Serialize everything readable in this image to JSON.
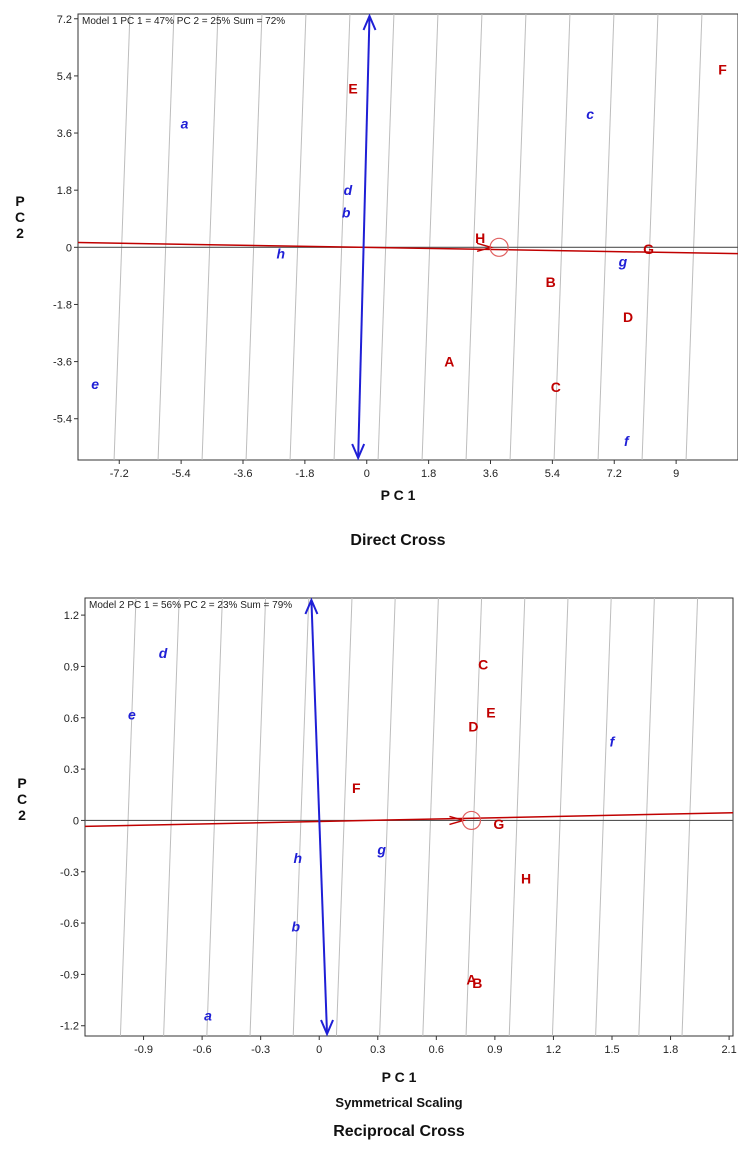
{
  "colors": {
    "entry": "#c00000",
    "tester": "#1f1fd6",
    "grid": "#bdbdbd",
    "axis": "#333333"
  },
  "chart_data": [
    {
      "type": "scatter",
      "header": "Model 1 PC 1 = 47% PC 2 = 25% Sum = 72%",
      "xlabel": "P C 1",
      "ylabel": "P C 2",
      "caption": "Direct Cross",
      "xlim": [
        -8.4,
        10.8
      ],
      "ylim": [
        -6.7,
        7.35
      ],
      "xticks": [
        -7.2,
        -5.4,
        -3.6,
        -1.8,
        0,
        1.8,
        3.6,
        5.4,
        7.2,
        9
      ],
      "xtick_labels": [
        "-7.2",
        "-5.4",
        "-3.6",
        "-1.8",
        "0",
        "1.8",
        "3.6",
        "5.4",
        "7.2",
        "9"
      ],
      "yticks": [
        7.2,
        5.4,
        3.6,
        1.8,
        0,
        -1.8,
        -3.6,
        -5.4
      ],
      "ytick_labels": [
        "7.2",
        "5.4",
        "3.6",
        "1.8",
        "0",
        "-1.8",
        "-3.6",
        "-5.4"
      ],
      "entry_points": [
        {
          "label": "A",
          "x": 2.4,
          "y": -3.6
        },
        {
          "label": "B",
          "x": 5.35,
          "y": -1.1
        },
        {
          "label": "C",
          "x": 5.5,
          "y": -4.4
        },
        {
          "label": "D",
          "x": 7.6,
          "y": -2.2
        },
        {
          "label": "E",
          "x": -0.4,
          "y": 5.0
        },
        {
          "label": "F",
          "x": 10.35,
          "y": 5.6
        },
        {
          "label": "G",
          "x": 8.2,
          "y": -0.05
        },
        {
          "label": "H",
          "x": 3.3,
          "y": 0.3
        }
      ],
      "tester_points": [
        {
          "label": "a",
          "x": -5.3,
          "y": 3.9
        },
        {
          "label": "b",
          "x": -0.6,
          "y": 1.1
        },
        {
          "label": "c",
          "x": 6.5,
          "y": 4.2
        },
        {
          "label": "d",
          "x": -0.55,
          "y": 1.8
        },
        {
          "label": "e",
          "x": -7.9,
          "y": -4.3
        },
        {
          "label": "f",
          "x": 7.55,
          "y": -6.1
        },
        {
          "label": "g",
          "x": 7.45,
          "y": -0.45
        },
        {
          "label": "h",
          "x": -2.5,
          "y": -0.2
        }
      ],
      "average_tester_circle": {
        "x": 3.85,
        "y": 0
      },
      "vertical_axis_arrow": {
        "x_top": 0.08,
        "x_bottom": -0.25
      },
      "red_line": {
        "x_start": -8.4,
        "y_start": 0.15,
        "x_end": 10.8,
        "y_end": -0.2
      }
    },
    {
      "type": "scatter",
      "header": "Model 2 PC 1 = 56% PC 2 = 23% Sum = 79%",
      "xlabel": "P C 1",
      "ylabel": "P C 2",
      "subtitle": "Symmetrical Scaling",
      "caption": "Reciprocal Cross",
      "xlim": [
        -1.2,
        2.12
      ],
      "ylim": [
        -1.26,
        1.3
      ],
      "xticks": [
        -0.9,
        -0.6,
        -0.3,
        0,
        0.3,
        0.6,
        0.9,
        1.2,
        1.5,
        1.8,
        2.1
      ],
      "xtick_labels": [
        "-0.9",
        "-0.6",
        "-0.3",
        "0",
        "0.3",
        "0.6",
        "0.9",
        "1.2",
        "1.5",
        "1.8",
        "2.1"
      ],
      "yticks": [
        1.2,
        0.9,
        0.6,
        0.3,
        0,
        -0.3,
        -0.6,
        -0.9,
        -1.2
      ],
      "ytick_labels": [
        "1.2",
        "0.9",
        "0.6",
        "0.3",
        "0",
        "-0.3",
        "-0.6",
        "-0.9",
        "-1.2"
      ],
      "entry_points": [
        {
          "label": "A",
          "x": 0.78,
          "y": -0.93
        },
        {
          "label": "B",
          "x": 0.81,
          "y": -0.95
        },
        {
          "label": "C",
          "x": 0.84,
          "y": 0.91
        },
        {
          "label": "D",
          "x": 0.79,
          "y": 0.55
        },
        {
          "label": "E",
          "x": 0.88,
          "y": 0.63
        },
        {
          "label": "F",
          "x": 0.19,
          "y": 0.19
        },
        {
          "label": "G",
          "x": 0.92,
          "y": -0.02
        },
        {
          "label": "H",
          "x": 1.06,
          "y": -0.34
        }
      ],
      "tester_points": [
        {
          "label": "a",
          "x": -0.57,
          "y": -1.14
        },
        {
          "label": "b",
          "x": -0.12,
          "y": -0.62
        },
        {
          "label": "d",
          "x": -0.8,
          "y": 0.98
        },
        {
          "label": "e",
          "x": -0.96,
          "y": 0.62
        },
        {
          "label": "f",
          "x": 1.5,
          "y": 0.46
        },
        {
          "label": "g",
          "x": 0.32,
          "y": -0.17
        },
        {
          "label": "h",
          "x": -0.11,
          "y": -0.22
        }
      ],
      "average_tester_circle": {
        "x": 0.78,
        "y": 0
      },
      "vertical_axis_arrow": {
        "x_top": -0.04,
        "x_bottom": 0.04
      },
      "red_line": {
        "x_start": -1.2,
        "y_start": -0.035,
        "x_end": 2.12,
        "y_end": 0.045
      }
    }
  ]
}
